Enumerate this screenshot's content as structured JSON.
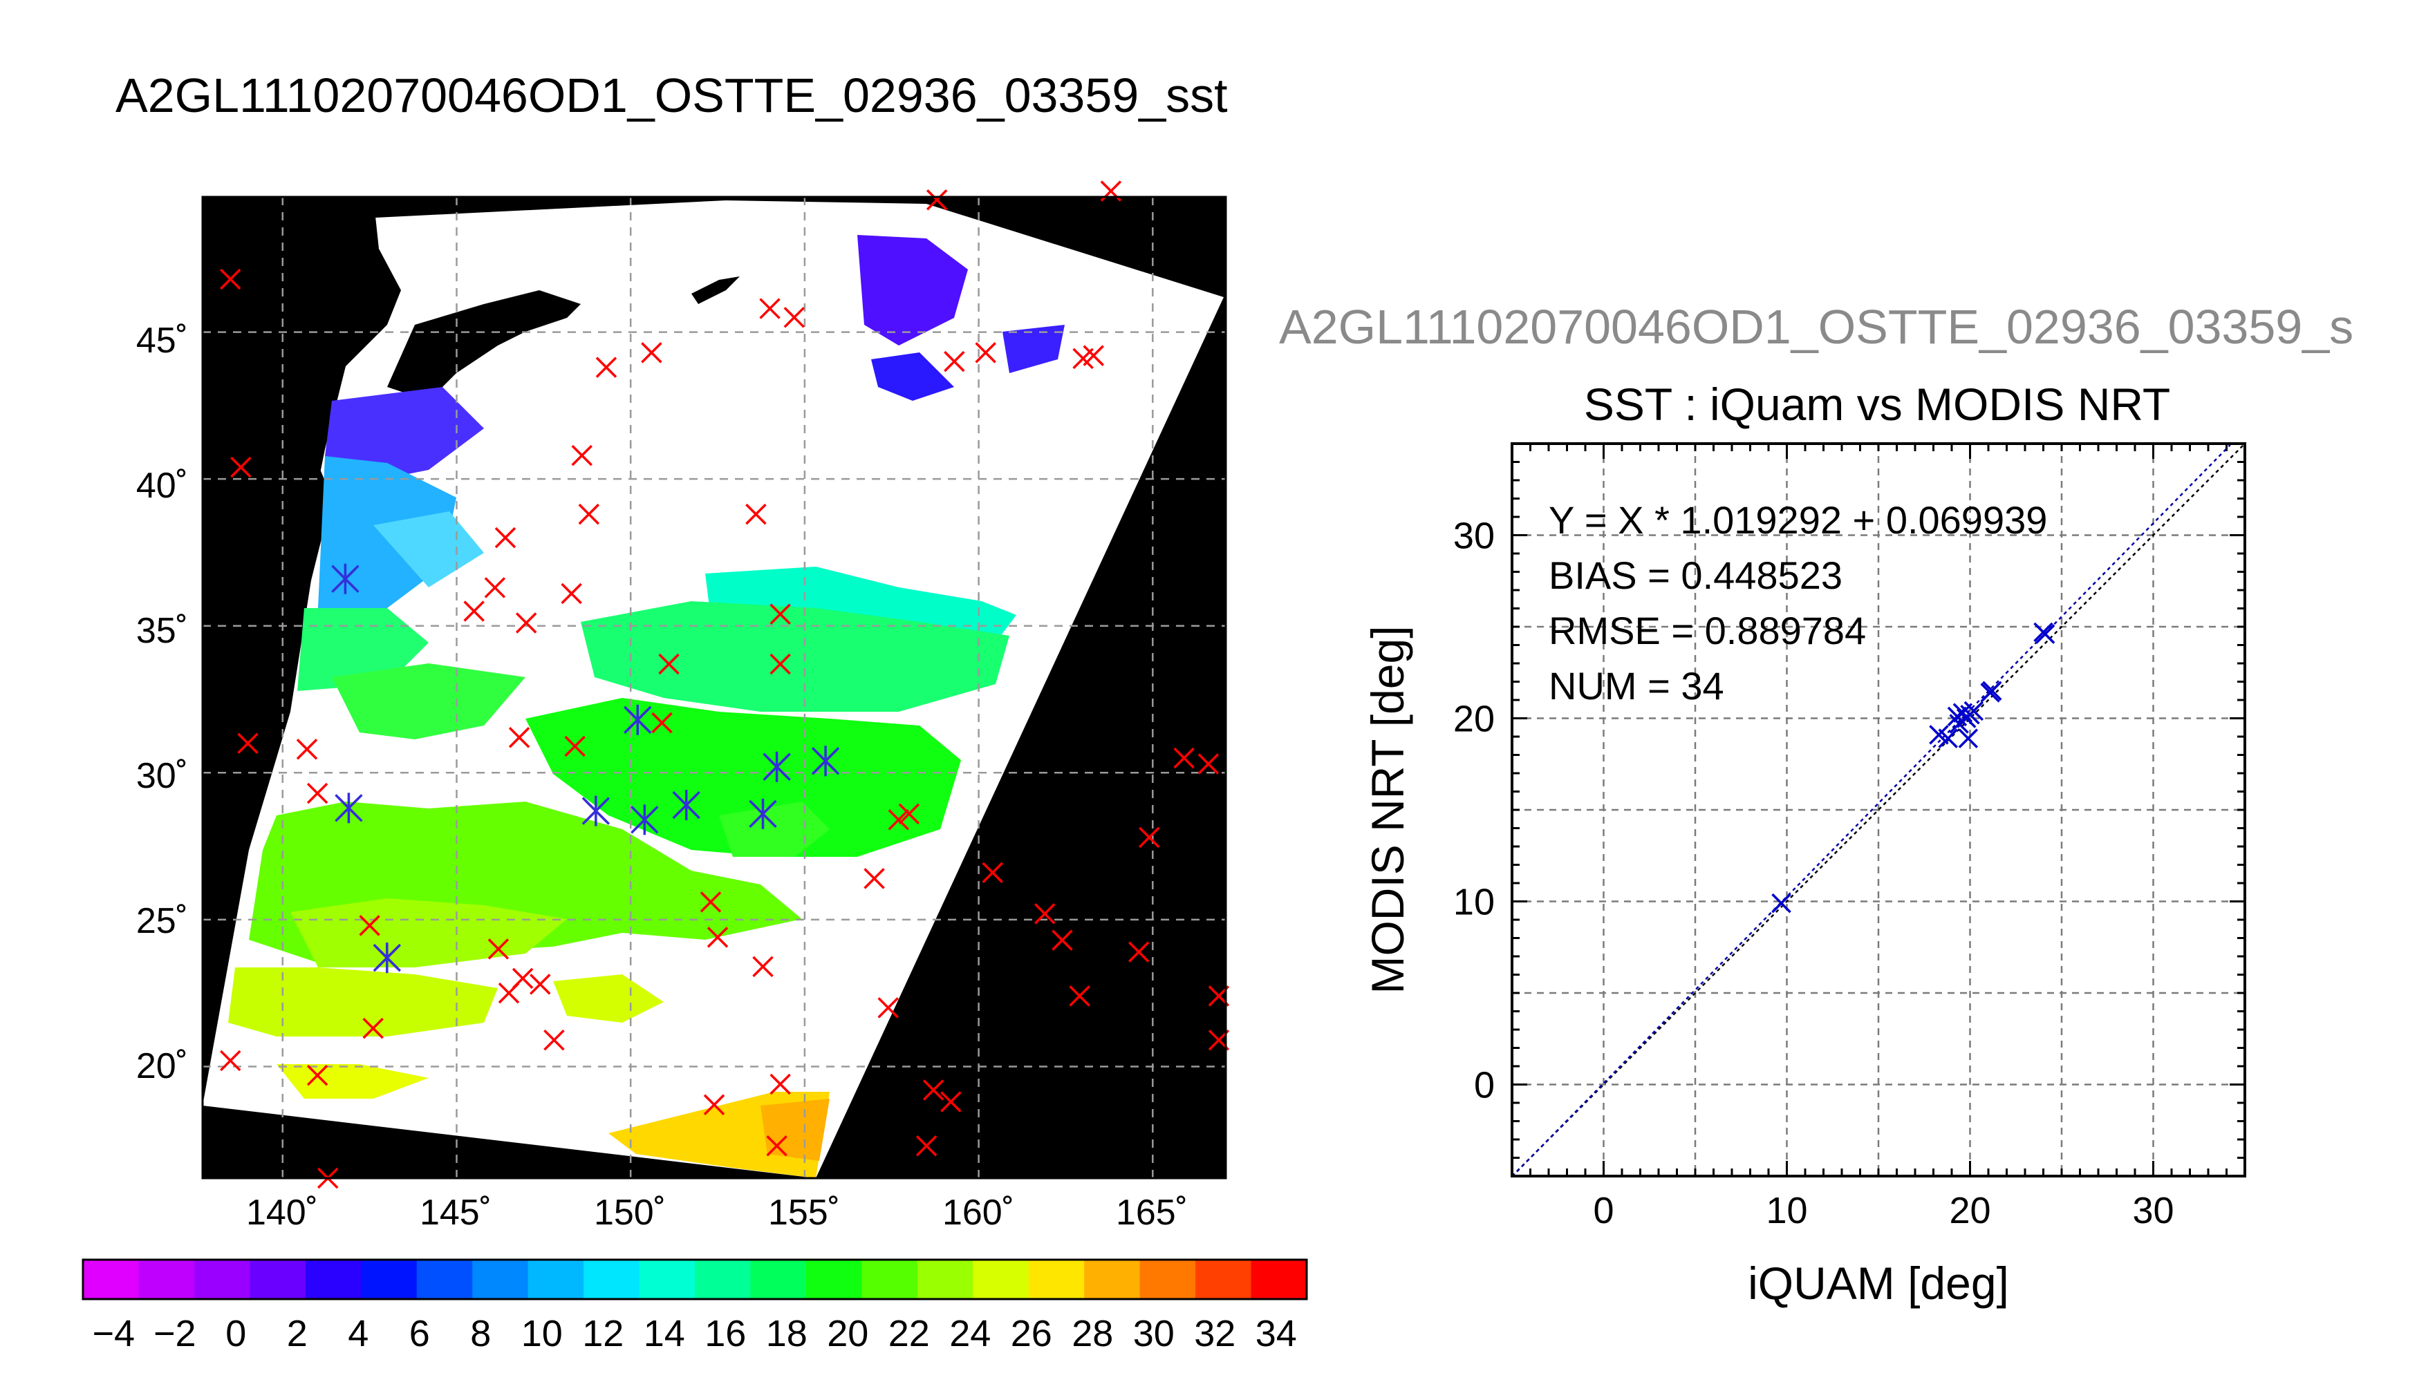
{
  "map": {
    "title": "A2GL11102070046OD1_OSTTE_02936_03359_sst",
    "lon_ticks": [
      "140˚",
      "145˚",
      "150˚",
      "155˚",
      "160˚",
      "165˚"
    ],
    "lon_values": [
      140,
      145,
      150,
      155,
      160,
      165
    ],
    "lat_ticks": [
      "45˚",
      "40˚",
      "35˚",
      "30˚",
      "25˚",
      "20˚"
    ],
    "lat_values": [
      45,
      40,
      35,
      30,
      25,
      20
    ],
    "lon_range": [
      137.7,
      167.1
    ],
    "lat_range": [
      16.2,
      49.6
    ],
    "colorbar_labels": [
      "−4",
      "−2",
      "0",
      "2",
      "4",
      "6",
      "8",
      "10",
      "12",
      "14",
      "16",
      "18",
      "20",
      "22",
      "24",
      "26",
      "28",
      "30",
      "32",
      "34"
    ],
    "colorbar_range": [
      -5,
      35
    ],
    "colorbar_colors": [
      "#e000ff",
      "#c000ff",
      "#9a00ff",
      "#6a00ff",
      "#2a00ff",
      "#0014ff",
      "#0050ff",
      "#0088ff",
      "#00b8ff",
      "#00e6ff",
      "#00ffd2",
      "#00ff96",
      "#00ff5a",
      "#10ff10",
      "#55ff00",
      "#9aff00",
      "#d8ff00",
      "#ffe600",
      "#ffb000",
      "#ff7800",
      "#ff4000",
      "#ff0000"
    ],
    "match_points_lonlat": [
      [
        141.8,
        36.6
      ],
      [
        141.9,
        28.8
      ],
      [
        143.0,
        23.7
      ],
      [
        149.0,
        28.7
      ],
      [
        150.2,
        31.8
      ],
      [
        150.4,
        28.4
      ],
      [
        151.6,
        28.9
      ],
      [
        153.8,
        28.6
      ],
      [
        154.2,
        30.2
      ],
      [
        155.6,
        30.4
      ]
    ],
    "other_points_lonlat": [
      [
        138.5,
        46.8
      ],
      [
        138.8,
        40.4
      ],
      [
        139.0,
        31.0
      ],
      [
        140.7,
        30.8
      ],
      [
        141.0,
        29.3
      ],
      [
        138.5,
        20.2
      ],
      [
        141.0,
        19.7
      ],
      [
        142.5,
        24.8
      ],
      [
        142.6,
        21.3
      ],
      [
        145.5,
        35.5
      ],
      [
        146.1,
        36.3
      ],
      [
        146.4,
        38.0
      ],
      [
        146.2,
        24.0
      ],
      [
        146.5,
        22.5
      ],
      [
        146.9,
        23.0
      ],
      [
        147.0,
        35.1
      ],
      [
        147.4,
        22.8
      ],
      [
        146.8,
        31.2
      ],
      [
        147.8,
        20.9
      ],
      [
        148.3,
        36.1
      ],
      [
        148.4,
        30.9
      ],
      [
        148.6,
        40.8
      ],
      [
        148.8,
        38.8
      ],
      [
        150.6,
        44.3
      ],
      [
        150.9,
        31.7
      ],
      [
        151.1,
        33.7
      ],
      [
        152.3,
        25.6
      ],
      [
        152.5,
        24.4
      ],
      [
        152.4,
        18.7
      ],
      [
        153.6,
        38.8
      ],
      [
        153.8,
        23.4
      ],
      [
        154.0,
        45.8
      ],
      [
        154.3,
        35.4
      ],
      [
        154.3,
        33.7
      ],
      [
        154.3,
        19.4
      ],
      [
        154.7,
        45.5
      ],
      [
        154.2,
        17.3
      ],
      [
        157.0,
        26.4
      ],
      [
        157.7,
        28.4
      ],
      [
        158.0,
        28.6
      ],
      [
        157.4,
        22.0
      ],
      [
        158.5,
        17.3
      ],
      [
        158.7,
        19.2
      ],
      [
        159.2,
        18.8
      ],
      [
        159.3,
        44.0
      ],
      [
        160.2,
        44.3
      ],
      [
        160.4,
        26.6
      ],
      [
        161.9,
        25.2
      ],
      [
        162.4,
        24.3
      ],
      [
        162.9,
        22.4
      ],
      [
        163.0,
        44.1
      ],
      [
        163.3,
        44.2
      ],
      [
        164.6,
        23.9
      ],
      [
        164.9,
        27.8
      ],
      [
        165.9,
        30.5
      ],
      [
        166.6,
        30.3
      ],
      [
        166.9,
        22.4
      ],
      [
        166.9,
        20.9
      ],
      [
        158.8,
        49.5
      ],
      [
        163.8,
        49.8
      ],
      [
        141.3,
        16.2
      ],
      [
        149.3,
        43.8
      ]
    ]
  },
  "scatter_panel": {
    "header": "A2GL11102070046OD1_OSTTE_02936_03359_s"
  },
  "chart_data": {
    "type": "scatter",
    "title": "SST : iQuam vs MODIS NRT",
    "xlabel": "iQUAM [deg]",
    "ylabel": "MODIS NRT [deg]",
    "xlim": [
      -5,
      35
    ],
    "ylim": [
      -5,
      35
    ],
    "x_ticks": [
      0,
      10,
      20,
      30
    ],
    "y_ticks": [
      0,
      10,
      20,
      30
    ],
    "grid": true,
    "annotations": [
      "Y = X * 1.019292 + 0.069939",
      "BIAS = 0.448523",
      "RMSE = 0.889784",
      "NUM = 34"
    ],
    "fit": {
      "slope": 1.019292,
      "intercept": 0.069939
    },
    "series": [
      {
        "color": "#0000cc",
        "points": [
          [
            9.7,
            9.9
          ],
          [
            18.3,
            19.1
          ],
          [
            18.8,
            18.9
          ],
          [
            19.3,
            20.1
          ],
          [
            19.4,
            19.7
          ],
          [
            19.6,
            20.3
          ],
          [
            19.8,
            20.0
          ],
          [
            19.9,
            18.9
          ],
          [
            20.0,
            20.2
          ],
          [
            20.2,
            20.4
          ],
          [
            21.1,
            21.4
          ],
          [
            21.2,
            21.5
          ],
          [
            24.0,
            24.7
          ],
          [
            24.1,
            24.6
          ]
        ]
      }
    ]
  }
}
